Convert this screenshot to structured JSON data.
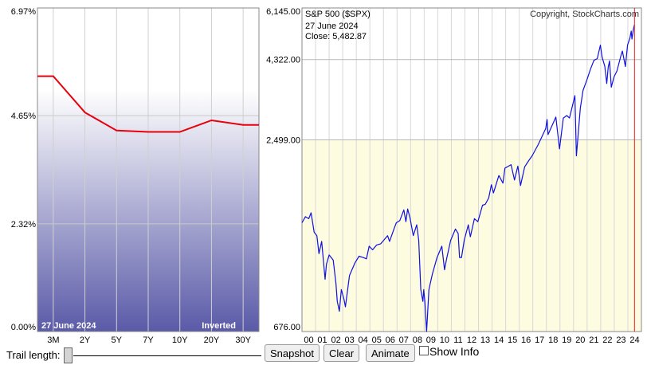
{
  "chart_data": [
    {
      "type": "line",
      "categories": [
        "3M",
        "2Y",
        "5Y",
        "7Y",
        "10Y",
        "20Y",
        "30Y"
      ],
      "values": [
        5.5,
        4.72,
        4.33,
        4.3,
        4.3,
        4.55,
        4.45
      ],
      "yticks": [
        "0.00%",
        "2.32%",
        "4.65%",
        "6.97%"
      ],
      "ylim": [
        0,
        6.97
      ],
      "date_label": "27  June 2024",
      "inverted_label": "Inverted",
      "line_color": "#e8000b",
      "fill_top_color": "#ffffff",
      "fill_bottom_color": "#5a5aa8",
      "grid": true
    },
    {
      "type": "line",
      "title": "S&P 500 ($SPX)",
      "copyright": "Copyright, StockCharts.com",
      "info_date": "27  June 2024",
      "info_close": "Close: 5,482.87",
      "x_labels": [
        "00",
        "01",
        "02",
        "03",
        "04",
        "05",
        "06",
        "07",
        "08",
        "09",
        "10",
        "11",
        "12",
        "13",
        "14",
        "15",
        "16",
        "17",
        "18",
        "19",
        "20",
        "21",
        "22",
        "23",
        "24"
      ],
      "yticks": [
        "676.00",
        "2,499.00",
        "4,322.00",
        "6,145.00"
      ],
      "ylim": [
        676,
        6145
      ],
      "line_color": "#1010e0",
      "cursor_color": "#e02020",
      "background_color": "#fdfbe0",
      "points": [
        [
          2000.0,
          1420
        ],
        [
          2000.25,
          1480
        ],
        [
          2000.5,
          1460
        ],
        [
          2000.67,
          1520
        ],
        [
          2000.9,
          1330
        ],
        [
          2001.1,
          1300
        ],
        [
          2001.25,
          1150
        ],
        [
          2001.45,
          1250
        ],
        [
          2001.7,
          965
        ],
        [
          2001.8,
          1070
        ],
        [
          2002.0,
          1140
        ],
        [
          2002.3,
          1100
        ],
        [
          2002.5,
          940
        ],
        [
          2002.6,
          830
        ],
        [
          2002.75,
          776
        ],
        [
          2002.9,
          900
        ],
        [
          2003.1,
          840
        ],
        [
          2003.2,
          800
        ],
        [
          2003.5,
          990
        ],
        [
          2003.9,
          1080
        ],
        [
          2004.2,
          1130
        ],
        [
          2004.5,
          1120
        ],
        [
          2004.75,
          1110
        ],
        [
          2004.95,
          1210
        ],
        [
          2005.2,
          1180
        ],
        [
          2005.5,
          1220
        ],
        [
          2005.8,
          1230
        ],
        [
          2005.95,
          1250
        ],
        [
          2006.3,
          1300
        ],
        [
          2006.45,
          1250
        ],
        [
          2006.8,
          1370
        ],
        [
          2006.95,
          1420
        ],
        [
          2007.2,
          1440
        ],
        [
          2007.5,
          1550
        ],
        [
          2007.65,
          1430
        ],
        [
          2007.78,
          1560
        ],
        [
          2007.95,
          1470
        ],
        [
          2008.2,
          1300
        ],
        [
          2008.45,
          1400
        ],
        [
          2008.6,
          1260
        ],
        [
          2008.75,
          900
        ],
        [
          2008.9,
          830
        ],
        [
          2008.97,
          900
        ],
        [
          2009.05,
          830
        ],
        [
          2009.18,
          676
        ],
        [
          2009.35,
          900
        ],
        [
          2009.6,
          1000
        ],
        [
          2009.95,
          1120
        ],
        [
          2010.3,
          1210
        ],
        [
          2010.5,
          1030
        ],
        [
          2010.65,
          1110
        ],
        [
          2010.95,
          1260
        ],
        [
          2011.3,
          1360
        ],
        [
          2011.5,
          1320
        ],
        [
          2011.6,
          1120
        ],
        [
          2011.75,
          1120
        ],
        [
          2011.95,
          1260
        ],
        [
          2012.25,
          1400
        ],
        [
          2012.4,
          1290
        ],
        [
          2012.7,
          1460
        ],
        [
          2012.95,
          1430
        ],
        [
          2013.3,
          1600
        ],
        [
          2013.5,
          1610
        ],
        [
          2013.75,
          1680
        ],
        [
          2013.95,
          1840
        ],
        [
          2014.1,
          1740
        ],
        [
          2014.5,
          1960
        ],
        [
          2014.8,
          1860
        ],
        [
          2014.95,
          2060
        ],
        [
          2015.4,
          2110
        ],
        [
          2015.65,
          1900
        ],
        [
          2015.9,
          2090
        ],
        [
          2016.1,
          1830
        ],
        [
          2016.4,
          2080
        ],
        [
          2016.7,
          2170
        ],
        [
          2016.95,
          2240
        ],
        [
          2017.4,
          2420
        ],
        [
          2017.95,
          2700
        ],
        [
          2018.05,
          2870
        ],
        [
          2018.12,
          2590
        ],
        [
          2018.7,
          2920
        ],
        [
          2018.97,
          2350
        ],
        [
          2019.25,
          2900
        ],
        [
          2019.5,
          2950
        ],
        [
          2019.7,
          2900
        ],
        [
          2019.98,
          3230
        ],
        [
          2020.1,
          3380
        ],
        [
          2020.21,
          2240
        ],
        [
          2020.5,
          3100
        ],
        [
          2020.7,
          3500
        ],
        [
          2020.98,
          3760
        ],
        [
          2021.25,
          4050
        ],
        [
          2021.5,
          4300
        ],
        [
          2021.75,
          4350
        ],
        [
          2021.98,
          4770
        ],
        [
          2022.1,
          4400
        ],
        [
          2022.3,
          4130
        ],
        [
          2022.45,
          3670
        ],
        [
          2022.55,
          4100
        ],
        [
          2022.65,
          4280
        ],
        [
          2022.78,
          3580
        ],
        [
          2022.98,
          3840
        ],
        [
          2023.2,
          4000
        ],
        [
          2023.5,
          4450
        ],
        [
          2023.6,
          4580
        ],
        [
          2023.82,
          4120
        ],
        [
          2023.98,
          4770
        ],
        [
          2024.15,
          5000
        ],
        [
          2024.25,
          5250
        ],
        [
          2024.3,
          4970
        ],
        [
          2024.4,
          5300
        ],
        [
          2024.49,
          5482.87
        ]
      ],
      "cursor_year": 2024.49,
      "grid": true
    }
  ],
  "controls": {
    "trail_label": "Trail length:",
    "snapshot": "Snapshot",
    "clear": "Clear",
    "animate": "Animate",
    "show_info": "Show Info"
  }
}
